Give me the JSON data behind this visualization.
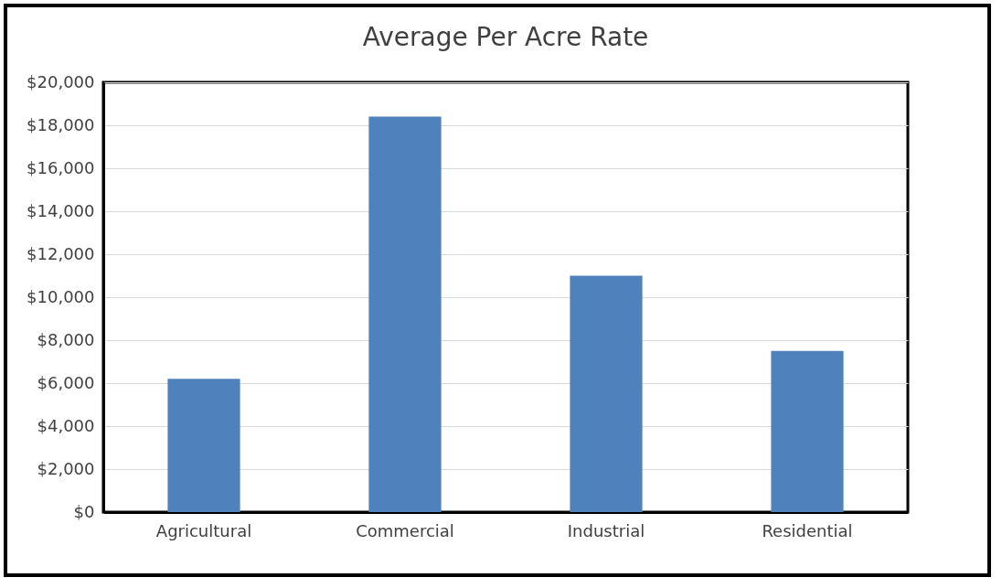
{
  "chart_data": {
    "type": "bar",
    "title": "Average Per Acre Rate",
    "categories": [
      "Agricultural",
      "Commercial",
      "Industrial",
      "Residential"
    ],
    "values": [
      6200,
      18400,
      11000,
      7500
    ],
    "color": "#4f81bd",
    "ylim": [
      0,
      20000
    ],
    "yticks": [
      {
        "value": 0,
        "label": "$0"
      },
      {
        "value": 2000,
        "label": "$2,000"
      },
      {
        "value": 4000,
        "label": "$4,000"
      },
      {
        "value": 6000,
        "label": "$6,000"
      },
      {
        "value": 8000,
        "label": "$8,000"
      },
      {
        "value": 10000,
        "label": "$10,000"
      },
      {
        "value": 12000,
        "label": "$12,000"
      },
      {
        "value": 14000,
        "label": "$14,000"
      },
      {
        "value": 16000,
        "label": "$16,000"
      },
      {
        "value": 18000,
        "label": "$18,000"
      },
      {
        "value": 20000,
        "label": "$20,000"
      }
    ],
    "grid": "y"
  }
}
